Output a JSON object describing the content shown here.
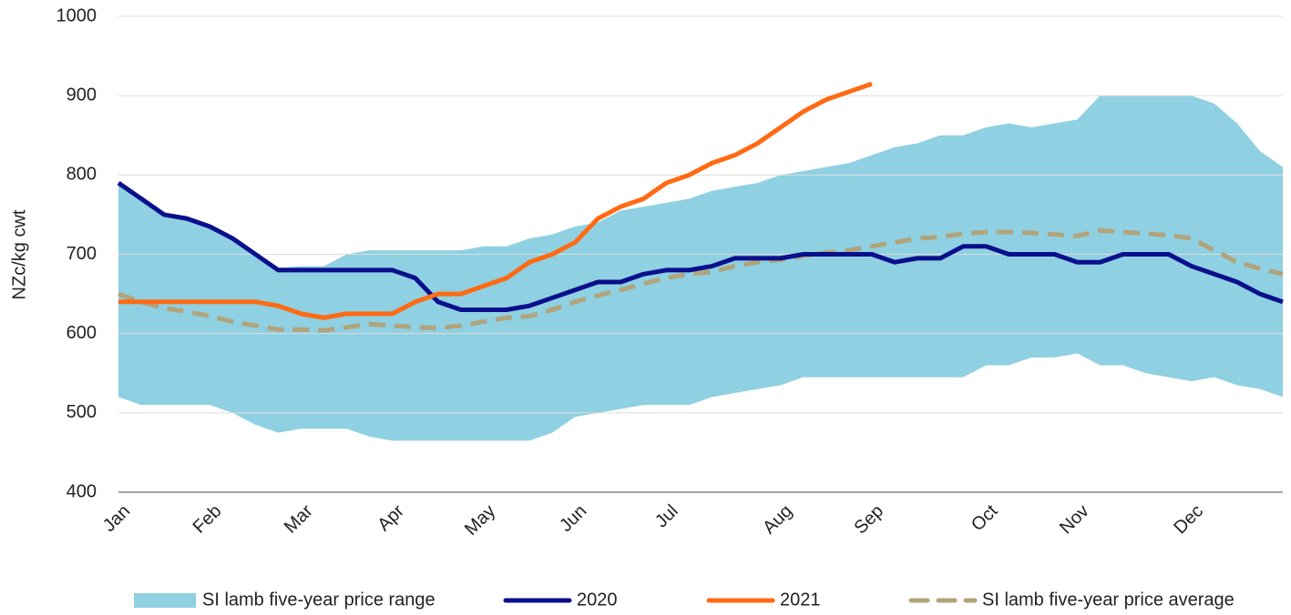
{
  "chart_data": {
    "type": "line",
    "y_label": "NZc/kg cwt",
    "categories": [
      "Jan",
      null,
      null,
      null,
      "Feb",
      null,
      null,
      null,
      "Mar",
      null,
      null,
      null,
      "Apr",
      null,
      null,
      null,
      "May",
      null,
      null,
      null,
      "Jun",
      null,
      null,
      null,
      "Jul",
      null,
      null,
      null,
      null,
      "Aug",
      null,
      null,
      null,
      "Sep",
      null,
      null,
      null,
      null,
      "Oct",
      null,
      null,
      null,
      "Nov",
      null,
      null,
      null,
      null,
      "Dec",
      null,
      null,
      null,
      null
    ],
    "ylim": [
      400,
      1000
    ],
    "yticks": [
      400,
      500,
      600,
      700,
      800,
      900,
      1000
    ],
    "grid": true,
    "range": {
      "name": "SI lamb five-year price range",
      "color": "#8fd0e2",
      "high": [
        790,
        770,
        750,
        745,
        735,
        720,
        700,
        683,
        685,
        685,
        700,
        705,
        705,
        705,
        705,
        705,
        710,
        710,
        720,
        725,
        735,
        740,
        755,
        760,
        765,
        770,
        780,
        785,
        790,
        800,
        805,
        810,
        815,
        825,
        835,
        840,
        850,
        850,
        860,
        865,
        860,
        865,
        870,
        900,
        900,
        900,
        900,
        900,
        890,
        865,
        830,
        810
      ],
      "low": [
        520,
        510,
        510,
        510,
        510,
        500,
        485,
        475,
        480,
        480,
        480,
        470,
        465,
        465,
        465,
        465,
        465,
        465,
        465,
        475,
        495,
        500,
        505,
        510,
        510,
        510,
        520,
        525,
        530,
        535,
        545,
        545,
        545,
        545,
        545,
        545,
        545,
        545,
        560,
        560,
        570,
        570,
        575,
        560,
        560,
        550,
        545,
        540,
        545,
        535,
        530,
        520
      ]
    },
    "series": [
      {
        "name": "2020",
        "color": "#0a0f8c",
        "dashed": false,
        "values": [
          790,
          770,
          750,
          745,
          735,
          720,
          700,
          680,
          680,
          680,
          680,
          680,
          680,
          670,
          640,
          630,
          630,
          630,
          635,
          645,
          655,
          665,
          665,
          675,
          680,
          680,
          685,
          695,
          695,
          695,
          700,
          700,
          700,
          700,
          690,
          695,
          695,
          710,
          710,
          700,
          700,
          700,
          690,
          690,
          700,
          700,
          700,
          685,
          675,
          665,
          650,
          640
        ]
      },
      {
        "name": "2021",
        "color": "#ff6a13",
        "dashed": false,
        "values": [
          640,
          640,
          640,
          640,
          640,
          640,
          640,
          635,
          625,
          620,
          625,
          625,
          625,
          640,
          650,
          650,
          660,
          670,
          690,
          700,
          715,
          745,
          760,
          770,
          790,
          800,
          815,
          825,
          840,
          860,
          880,
          895,
          905,
          915,
          null,
          null,
          null,
          null,
          null,
          null,
          null,
          null,
          null,
          null,
          null,
          null,
          null,
          null,
          null,
          null,
          null,
          null
        ]
      },
      {
        "name": "SI lamb five-year price average",
        "color": "#b1a37b",
        "dashed": true,
        "values": [
          650,
          640,
          632,
          628,
          622,
          615,
          610,
          605,
          605,
          604,
          608,
          612,
          610,
          608,
          607,
          610,
          615,
          620,
          622,
          630,
          640,
          648,
          655,
          663,
          670,
          675,
          678,
          685,
          690,
          693,
          698,
          702,
          705,
          710,
          715,
          720,
          722,
          726,
          728,
          728,
          727,
          725,
          723,
          730,
          728,
          726,
          724,
          720,
          705,
          690,
          682,
          675
        ]
      }
    ],
    "legend": "bottom"
  }
}
